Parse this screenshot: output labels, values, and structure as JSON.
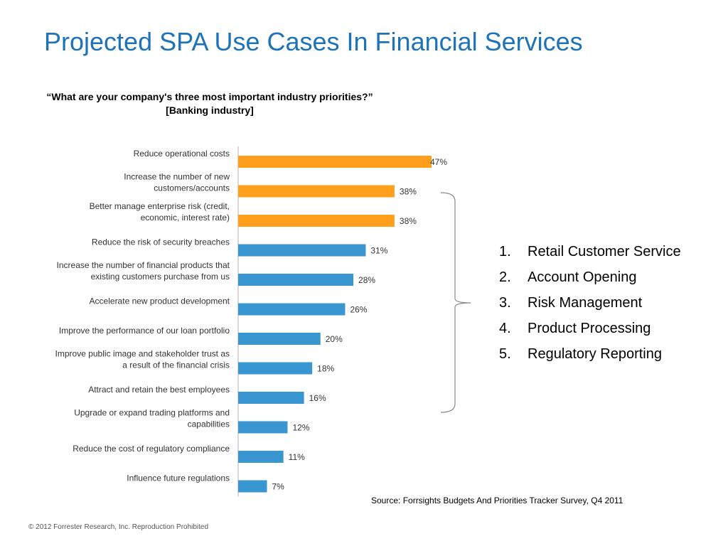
{
  "title": "Projected SPA Use Cases In Financial Services",
  "question": "“What are your company's three most important industry priorities?” [Banking industry]",
  "chart_data": {
    "type": "bar",
    "orientation": "horizontal",
    "categories": [
      [
        "Reduce operational costs"
      ],
      [
        "Increase the number of new",
        "customers/accounts"
      ],
      [
        "Better manage enterprise risk (credit,",
        "economic, interest rate)"
      ],
      [
        "Reduce the risk of security breaches"
      ],
      [
        "Increase the number of financial products that",
        "existing customers purchase from us"
      ],
      [
        "Accelerate new product development"
      ],
      [
        "Improve the performance of our loan portfolio"
      ],
      [
        "Improve public image and stakeholder trust as",
        "a result of the financial crisis"
      ],
      [
        "Attract and retain the best employees"
      ],
      [
        "Upgrade or expand trading platforms and",
        "capabilities"
      ],
      [
        "Reduce the cost of regulatory compliance"
      ],
      [
        "Influence future regulations"
      ]
    ],
    "values": [
      47,
      38,
      38,
      31,
      28,
      26,
      20,
      18,
      16,
      12,
      11,
      7
    ],
    "value_labels": [
      "47%",
      "38%",
      "38%",
      "31%",
      "28%",
      "26%",
      "20%",
      "18%",
      "16%",
      "12%",
      "11%",
      "7%"
    ],
    "highlighted": [
      true,
      true,
      true,
      false,
      false,
      false,
      false,
      false,
      false,
      false,
      false,
      false
    ],
    "colors": {
      "highlight": "#ff9f1c",
      "default": "#3a96d1",
      "axis": "#b0b0b0",
      "bracket": "#888888"
    },
    "xlim": [
      0,
      50
    ],
    "grid": false,
    "legend": "none"
  },
  "use_cases": [
    {
      "num": "1.",
      "label": "Retail Customer Service"
    },
    {
      "num": "2.",
      "label": "Account Opening"
    },
    {
      "num": "3.",
      "label": "Risk Management"
    },
    {
      "num": "4.",
      "label": "Product Processing"
    },
    {
      "num": "5.",
      "label": "Regulatory Reporting"
    }
  ],
  "source": "Source: Forrsights Budgets And Priorities Tracker Survey, Q4 2011",
  "footer": "© 2012 Forrester Research, Inc. Reproduction Prohibited"
}
